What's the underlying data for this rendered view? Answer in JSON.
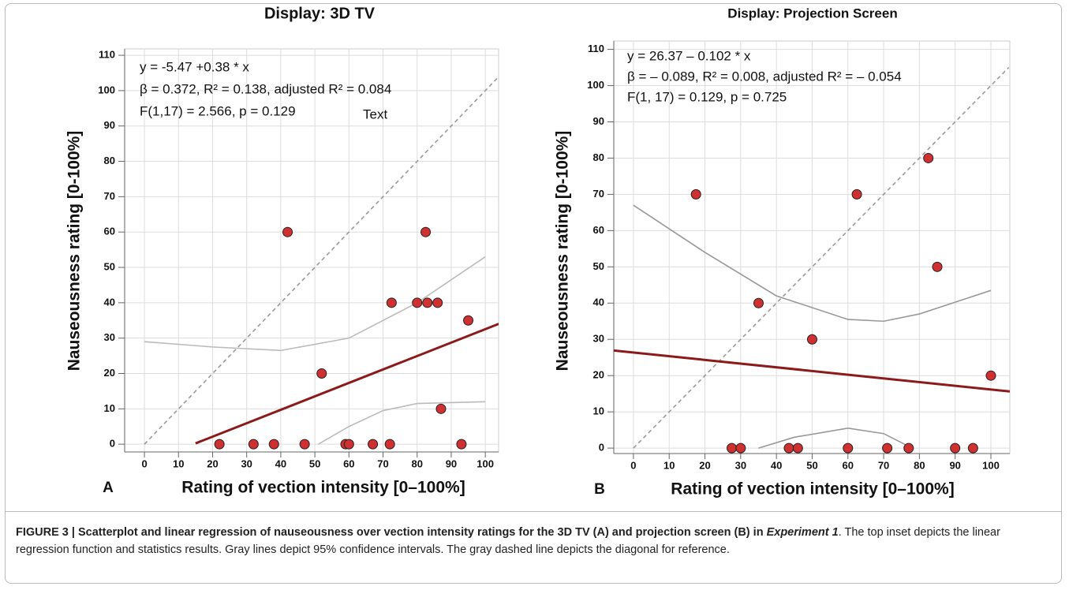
{
  "chart_data": [
    {
      "type": "scatter",
      "title": "Display: 3D TV",
      "panel": "A",
      "xlabel": "Rating of vection intensity [0–100%]",
      "ylabel": "Nauseousness rating [0-100%]",
      "annotations": [
        "y = -5.47 +0.38 * x",
        "β = 0.372, R² = 0.138, adjusted R² = 0.084",
        "F(1,17) = 2.566, p = 0.129",
        "Text"
      ],
      "xlim": [
        -5.8,
        103.9
      ],
      "ylim": [
        -2.2,
        111.8
      ],
      "xticks": [
        0,
        10,
        20,
        30,
        40,
        50,
        60,
        70,
        80,
        90,
        100
      ],
      "yticks": [
        0,
        10,
        20,
        30,
        40,
        50,
        60,
        70,
        80,
        90,
        100,
        110
      ],
      "grid": true,
      "series": [
        {
          "type": "line",
          "color": "#999999",
          "dash": true,
          "x": [
            0,
            105
          ],
          "values": [
            0,
            105
          ]
        },
        {
          "type": "line",
          "color": "#bbbbbb",
          "x": [
            0,
            20,
            40,
            60,
            80,
            100
          ],
          "values": [
            29,
            27.5,
            26.5,
            30,
            40,
            53
          ]
        },
        {
          "type": "line",
          "color": "#bbbbbb",
          "x": [
            51,
            60,
            70,
            80,
            100
          ],
          "values": [
            0,
            5,
            9.5,
            11.5,
            12
          ]
        },
        {
          "type": "line",
          "color": "#8b1a1a",
          "width": 3,
          "x": [
            15,
            104
          ],
          "values": [
            0.23,
            34.05
          ]
        },
        {
          "type": "scatter",
          "color": "#d03030",
          "x": [
            22,
            32,
            38,
            42,
            47,
            52,
            59,
            60,
            67,
            72,
            72.5,
            80,
            82.5,
            83,
            86,
            87,
            93,
            95
          ],
          "values": [
            0,
            0,
            0,
            60,
            0,
            20,
            0,
            0,
            0,
            0,
            40,
            40,
            60,
            40,
            40,
            10,
            0,
            35
          ]
        }
      ]
    },
    {
      "type": "scatter",
      "title": "Display: Projection Screen",
      "panel": "B",
      "xlabel": "Rating of vection intensity [0–100%]",
      "ylabel": "Nauseousness rating [0-100%]",
      "annotations": [
        "y = 26.37 – 0.102 * x",
        "β = – 0.089, R² = 0.008, adjusted R² = – 0.054",
        "F(1, 17) = 0.129, p = 0.725"
      ],
      "xlim": [
        -5.5,
        105.3
      ],
      "ylim": [
        -1.5,
        112.3
      ],
      "xticks": [
        0,
        10,
        20,
        30,
        40,
        50,
        60,
        70,
        80,
        90,
        100
      ],
      "yticks": [
        0,
        10,
        20,
        30,
        40,
        50,
        60,
        70,
        80,
        90,
        100,
        110
      ],
      "grid": true,
      "series": [
        {
          "type": "line",
          "color": "#999999",
          "dash": true,
          "x": [
            0,
            105
          ],
          "values": [
            0,
            105
          ]
        },
        {
          "type": "line",
          "color": "#999999",
          "x": [
            0,
            20,
            40,
            60,
            70,
            80,
            100
          ],
          "values": [
            67,
            54,
            42,
            35.5,
            35,
            37,
            43.5
          ]
        },
        {
          "type": "line",
          "color": "#999999",
          "x": [
            35,
            45,
            60,
            70,
            78
          ],
          "values": [
            0,
            3,
            5.5,
            4,
            0
          ]
        },
        {
          "type": "line",
          "color": "#8b1a1a",
          "width": 3,
          "x": [
            -5.5,
            105.3
          ],
          "values": [
            26.93,
            15.63
          ]
        },
        {
          "type": "scatter",
          "color": "#d03030",
          "x": [
            17.5,
            27.5,
            30,
            35,
            43.5,
            46,
            50,
            60,
            62.5,
            71,
            77,
            82.5,
            85,
            90,
            95,
            100
          ],
          "values": [
            70,
            0,
            0,
            40,
            0,
            0,
            30,
            0,
            70,
            0,
            0,
            80,
            50,
            0,
            0,
            20
          ]
        }
      ]
    }
  ],
  "caption": {
    "bold": "FIGURE 3 | Scatterplot and linear regression of nauseousness over vection intensity ratings for the 3D TV (A) and projection screen (B) in ",
    "bold_italic": "Experiment 1",
    "text": ". The top inset depicts the linear regression function and statistics results. Gray lines depict 95% confidence intervals. The gray dashed line depicts the diagonal for reference."
  }
}
